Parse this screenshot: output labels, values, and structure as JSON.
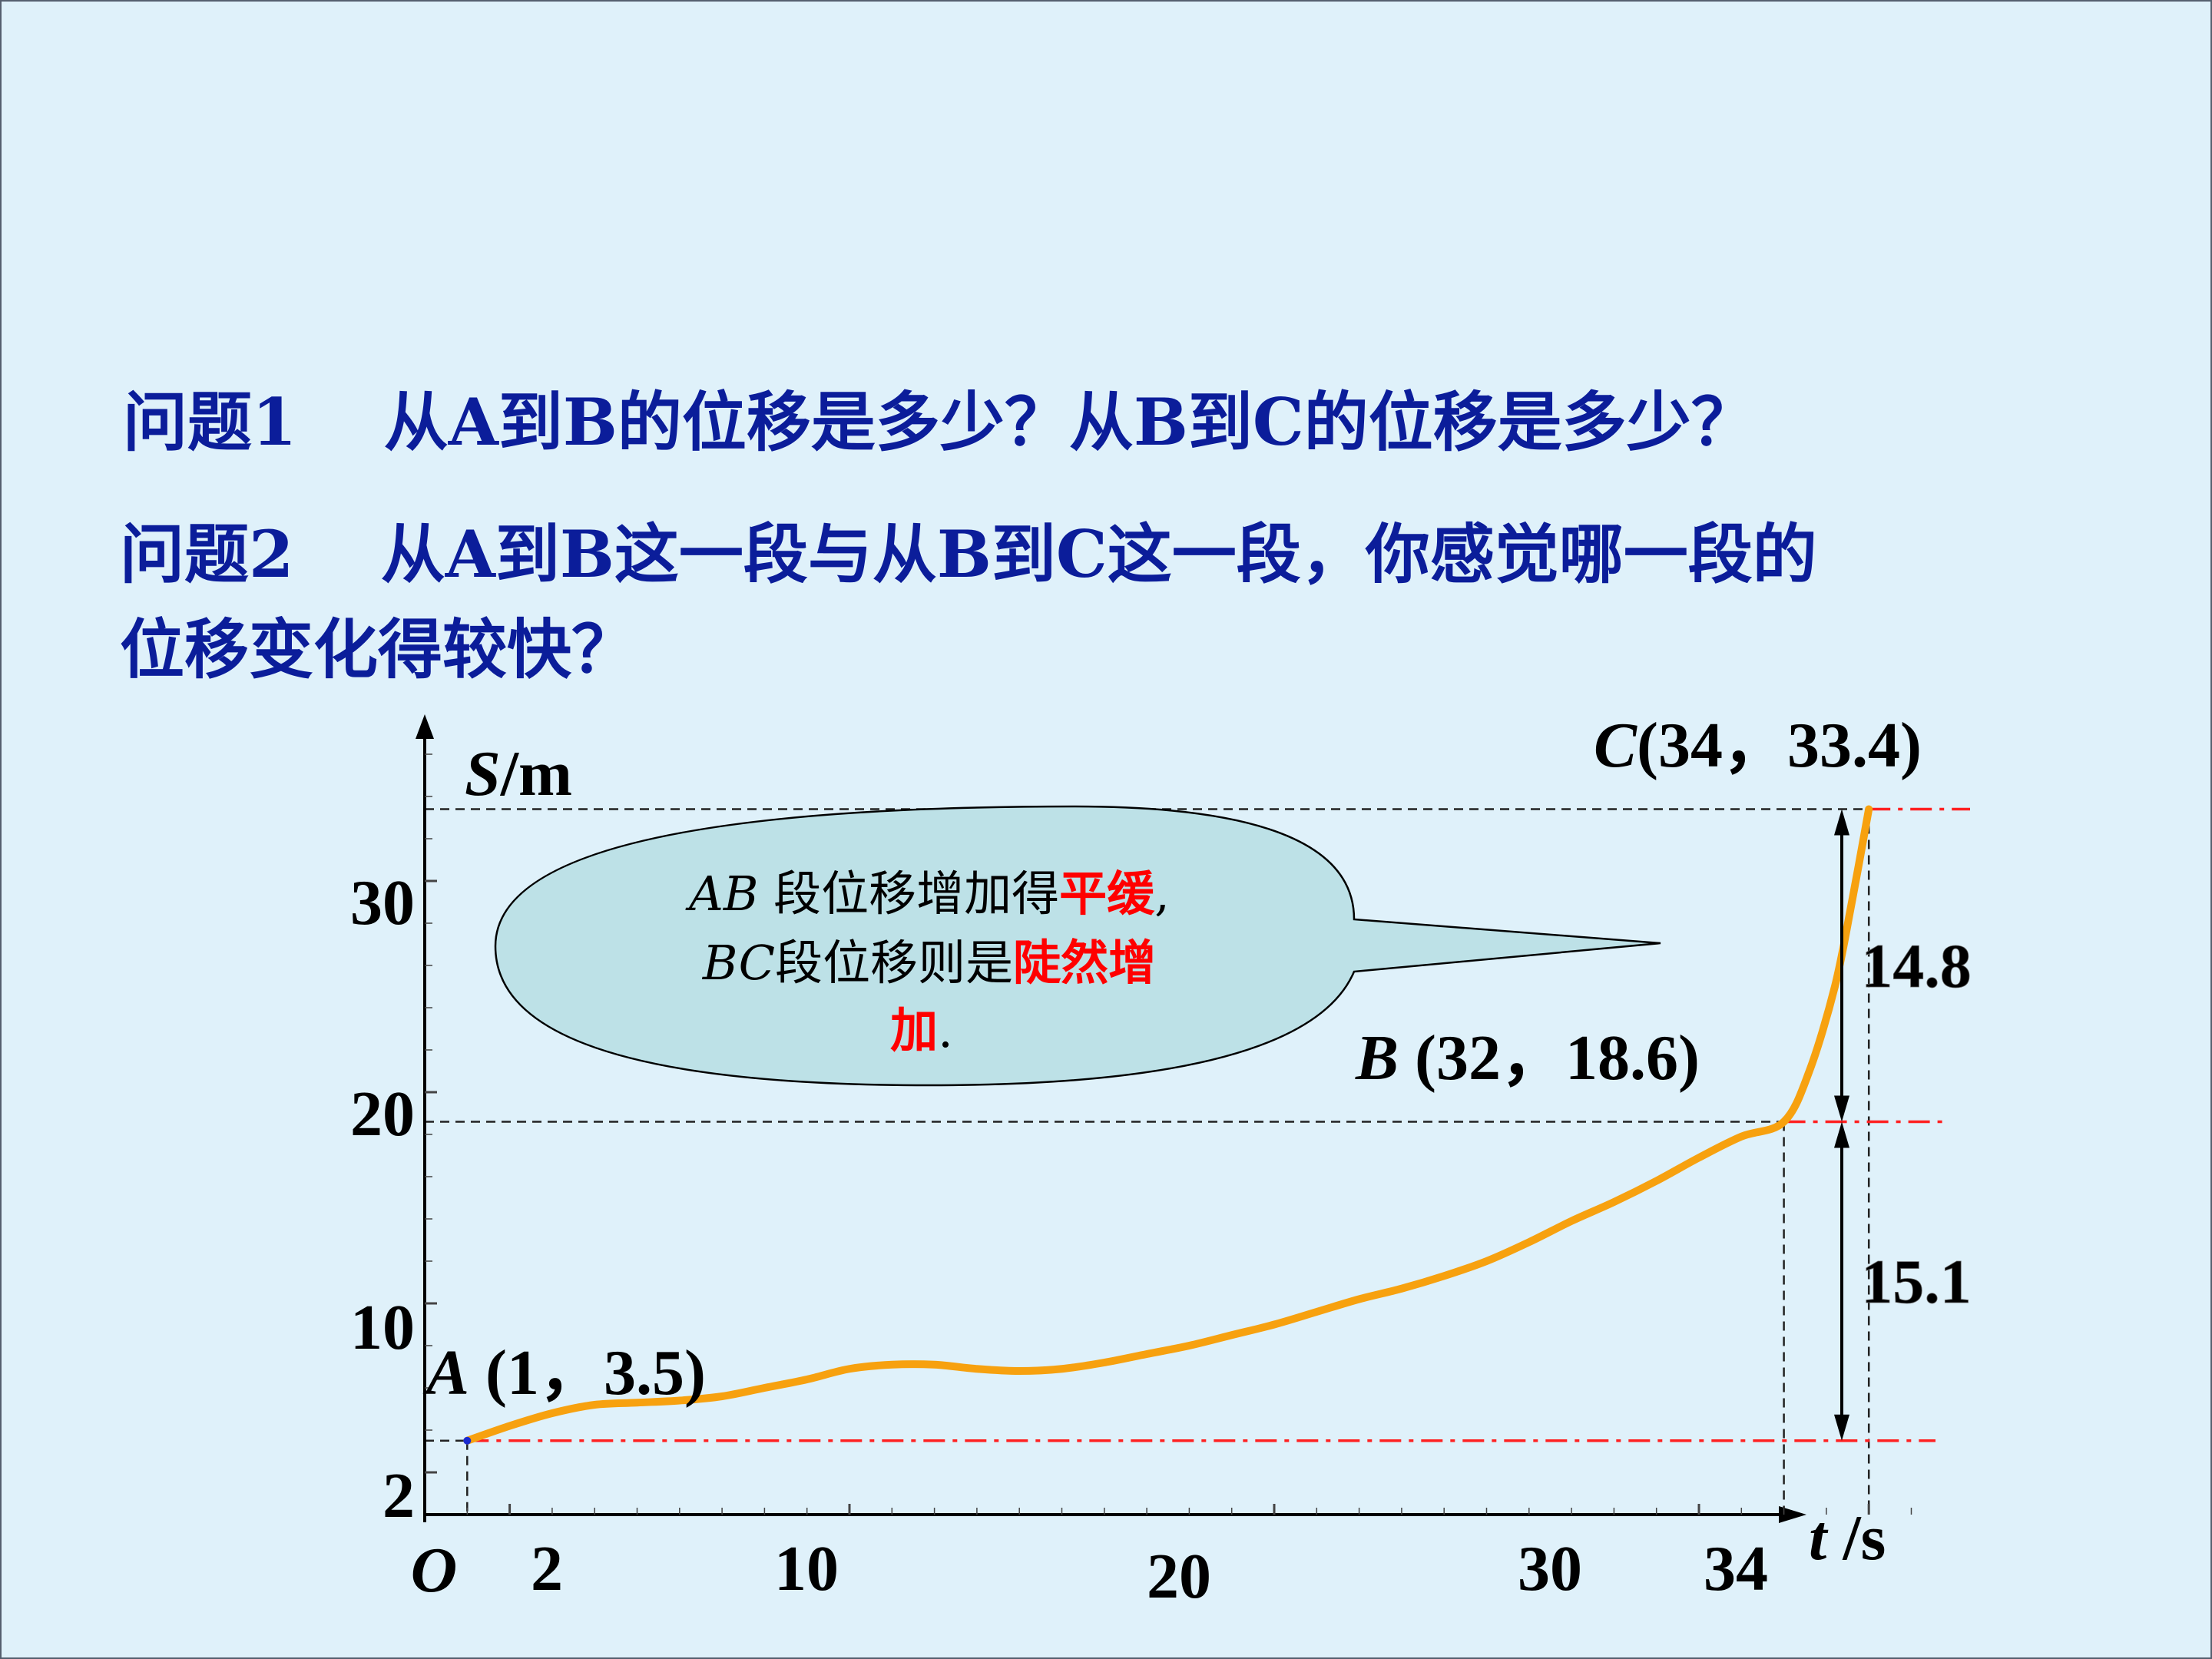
{
  "questions": {
    "q1": "问题1　 从A到B的位移是多少？从B到C的位移是多少？",
    "q2_line1": "问题2　 从A到B这一段与从B到C这一段，你感觉哪一段的",
    "q2_line2": "位移变化得较快？"
  },
  "callout": {
    "line1_prefix": "AB",
    "line1_mid": " 段位移增加得",
    "line1_red": "平缓",
    "line1_tail": ",",
    "line2_prefix": "BC",
    "line2_mid": "段位移则是",
    "line2_red": "陡然增",
    "line3_red": "加",
    "line3_tail": "."
  },
  "chart_data": {
    "type": "line",
    "xlabel_var": "t",
    "xlabel_unit": "/s",
    "ylabel_var": "S",
    "ylabel_unit": "/m",
    "origin_label": "O",
    "x_ticks": [
      2,
      10,
      20,
      30,
      34
    ],
    "y_ticks": [
      2,
      10,
      20,
      30
    ],
    "xlim": [
      0,
      36
    ],
    "ylim": [
      0,
      37
    ],
    "series": [
      {
        "points": [
          [
            1,
            3.5
          ],
          [
            2,
            4.2
          ],
          [
            3,
            4.8
          ],
          [
            4,
            5.2
          ],
          [
            5,
            5.3
          ],
          [
            6,
            5.4
          ],
          [
            7,
            5.6
          ],
          [
            8,
            6.0
          ],
          [
            9,
            6.4
          ],
          [
            10,
            6.9
          ],
          [
            11,
            7.1
          ],
          [
            12,
            7.1
          ],
          [
            13,
            6.9
          ],
          [
            14,
            6.8
          ],
          [
            15,
            6.9
          ],
          [
            16,
            7.2
          ],
          [
            17,
            7.6
          ],
          [
            18,
            8.0
          ],
          [
            19,
            8.5
          ],
          [
            20,
            9.0
          ],
          [
            21,
            9.6
          ],
          [
            22,
            10.2
          ],
          [
            23,
            10.7
          ],
          [
            24,
            11.3
          ],
          [
            25,
            12.0
          ],
          [
            26,
            12.9
          ],
          [
            27,
            13.9
          ],
          [
            28,
            14.8
          ],
          [
            29,
            15.8
          ],
          [
            30,
            16.9
          ],
          [
            31,
            17.9
          ],
          [
            32,
            18.6
          ],
          [
            32.6,
            21.0
          ],
          [
            33.2,
            25.0
          ],
          [
            33.6,
            29.0
          ],
          [
            34,
            33.4
          ]
        ]
      }
    ],
    "points_labeled": [
      {
        "name": "A",
        "coords": "(1，3.5)",
        "x": 1,
        "y": 3.5
      },
      {
        "name": "B",
        "coords": "(32，18.6)",
        "x": 32,
        "y": 18.6
      },
      {
        "name": "C",
        "coords": "(34，33.4)",
        "x": 34,
        "y": 33.4
      }
    ],
    "differences": [
      {
        "label": "14.8",
        "from": 18.6,
        "to": 33.4
      },
      {
        "label": "15.1",
        "from": 3.5,
        "to": 18.6
      }
    ],
    "colors": {
      "curve": "#f7a10f",
      "guide_dash": "#222222",
      "red_dashdot": "#ff2020",
      "question_text": "#0b1d9a",
      "callout_fill": "#bde1e7",
      "highlight": "#ff0000"
    }
  }
}
